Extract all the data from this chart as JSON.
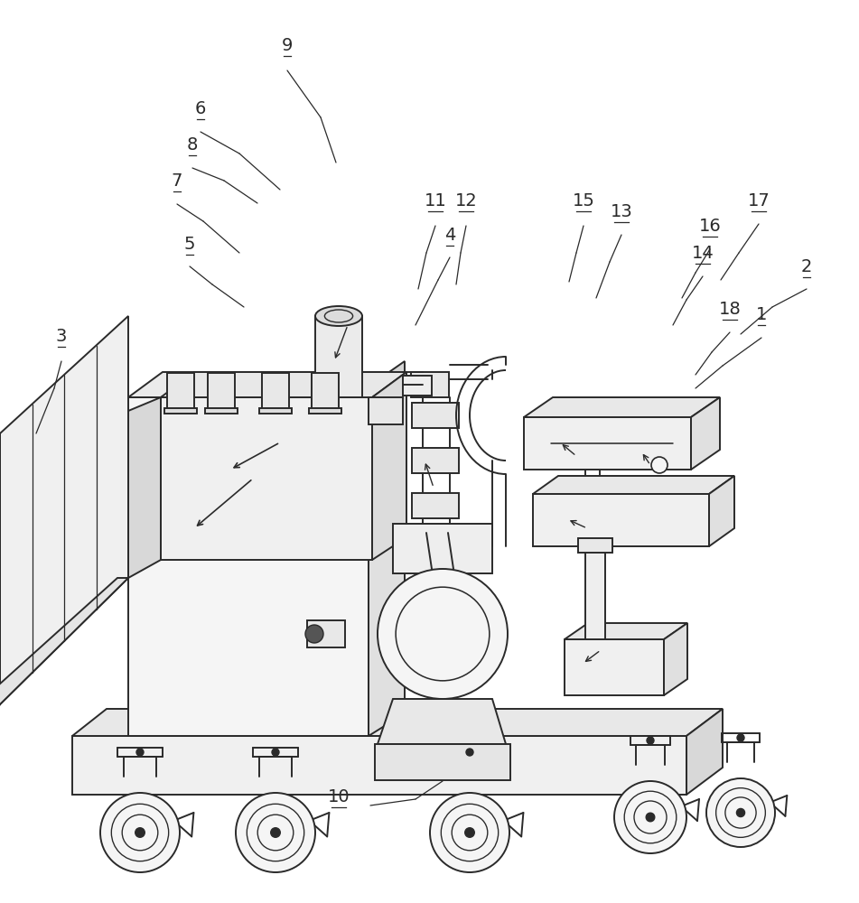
{
  "bg_color": "#ffffff",
  "line_color": "#2a2a2a",
  "lw": 1.4,
  "fig_width": 9.51,
  "fig_height": 10.0
}
